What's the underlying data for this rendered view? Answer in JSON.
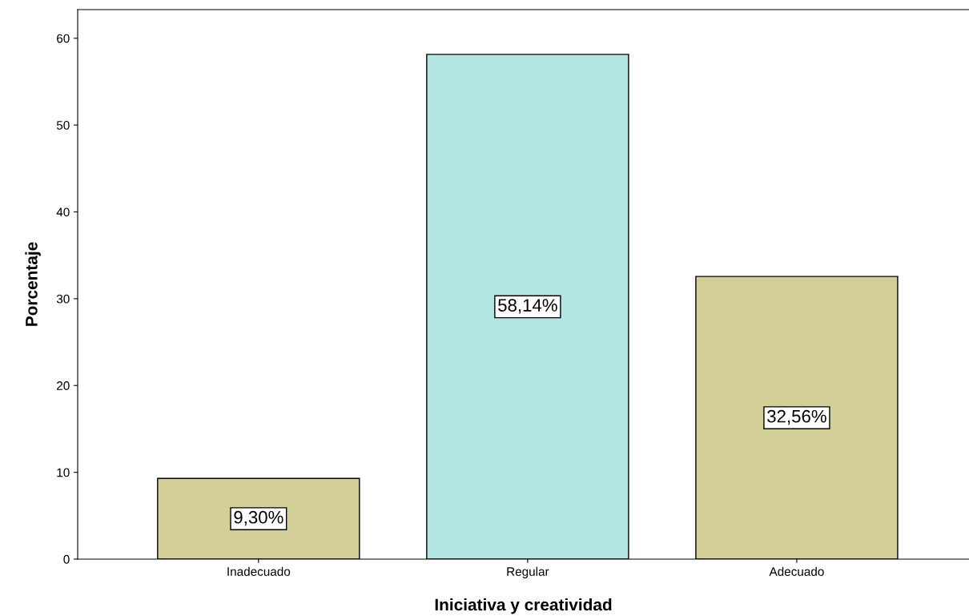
{
  "chart_data": {
    "type": "bar",
    "xlabel": "Iniciativa y creatividad",
    "ylabel": "Porcentaje",
    "categories": [
      "Inadecuado",
      "Regular",
      "Adecuado"
    ],
    "values": [
      9.3,
      58.14,
      32.56
    ],
    "colors": [
      "#d4ce98",
      "#b4e5e5",
      "#d4ce98"
    ],
    "value_labels": [
      "9,30%",
      "58,14%",
      "32,56%"
    ],
    "ylim": [
      0,
      63.3
    ],
    "yticks": [
      0,
      10,
      20,
      30,
      40,
      50,
      60
    ],
    "grid": false,
    "legend": false
  }
}
